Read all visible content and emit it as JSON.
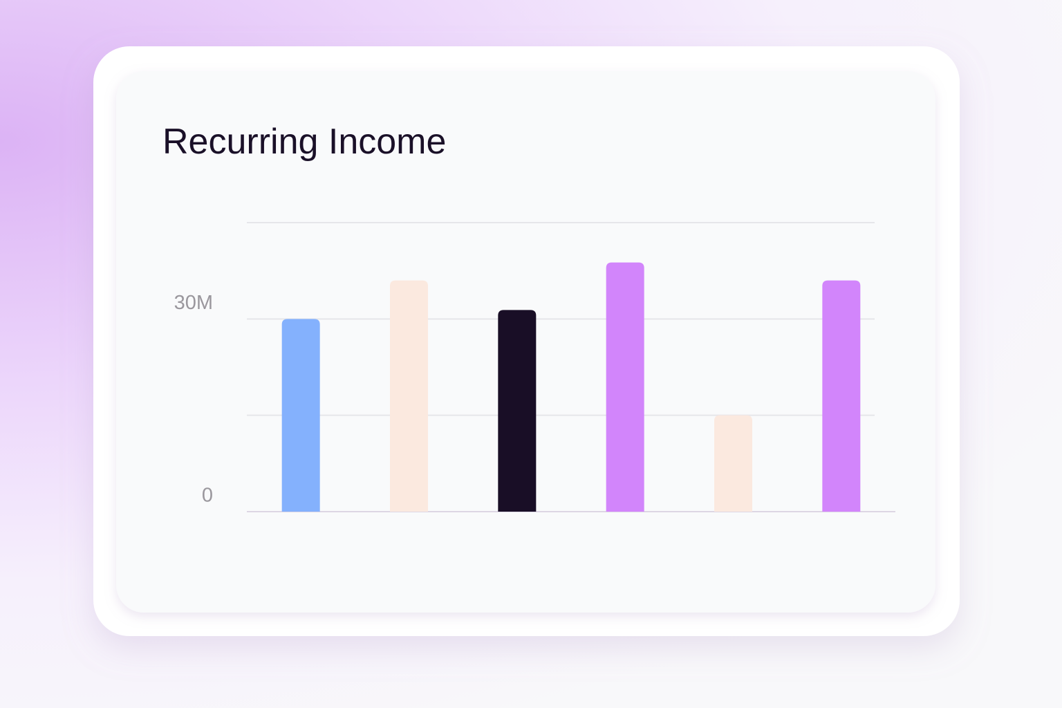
{
  "chart_data": {
    "type": "bar",
    "title": "Recurring Income",
    "categories": [
      null,
      null,
      null,
      null,
      null,
      null
    ],
    "values": [
      30000000,
      36000000,
      31400000,
      38800000,
      15000000,
      36000000
    ],
    "colors": [
      "#84b1fd",
      "#fbe9df",
      "#190e26",
      "#d285fb",
      "#fbe9df",
      "#d285fb"
    ],
    "ylim": [
      0,
      45000000
    ],
    "yticks": [
      0,
      {
        "value": 15000000,
        "label": null
      },
      {
        "value": 30000000,
        "label": "30M"
      },
      {
        "value": 45000000,
        "label": null
      }
    ],
    "grid": true
  }
}
